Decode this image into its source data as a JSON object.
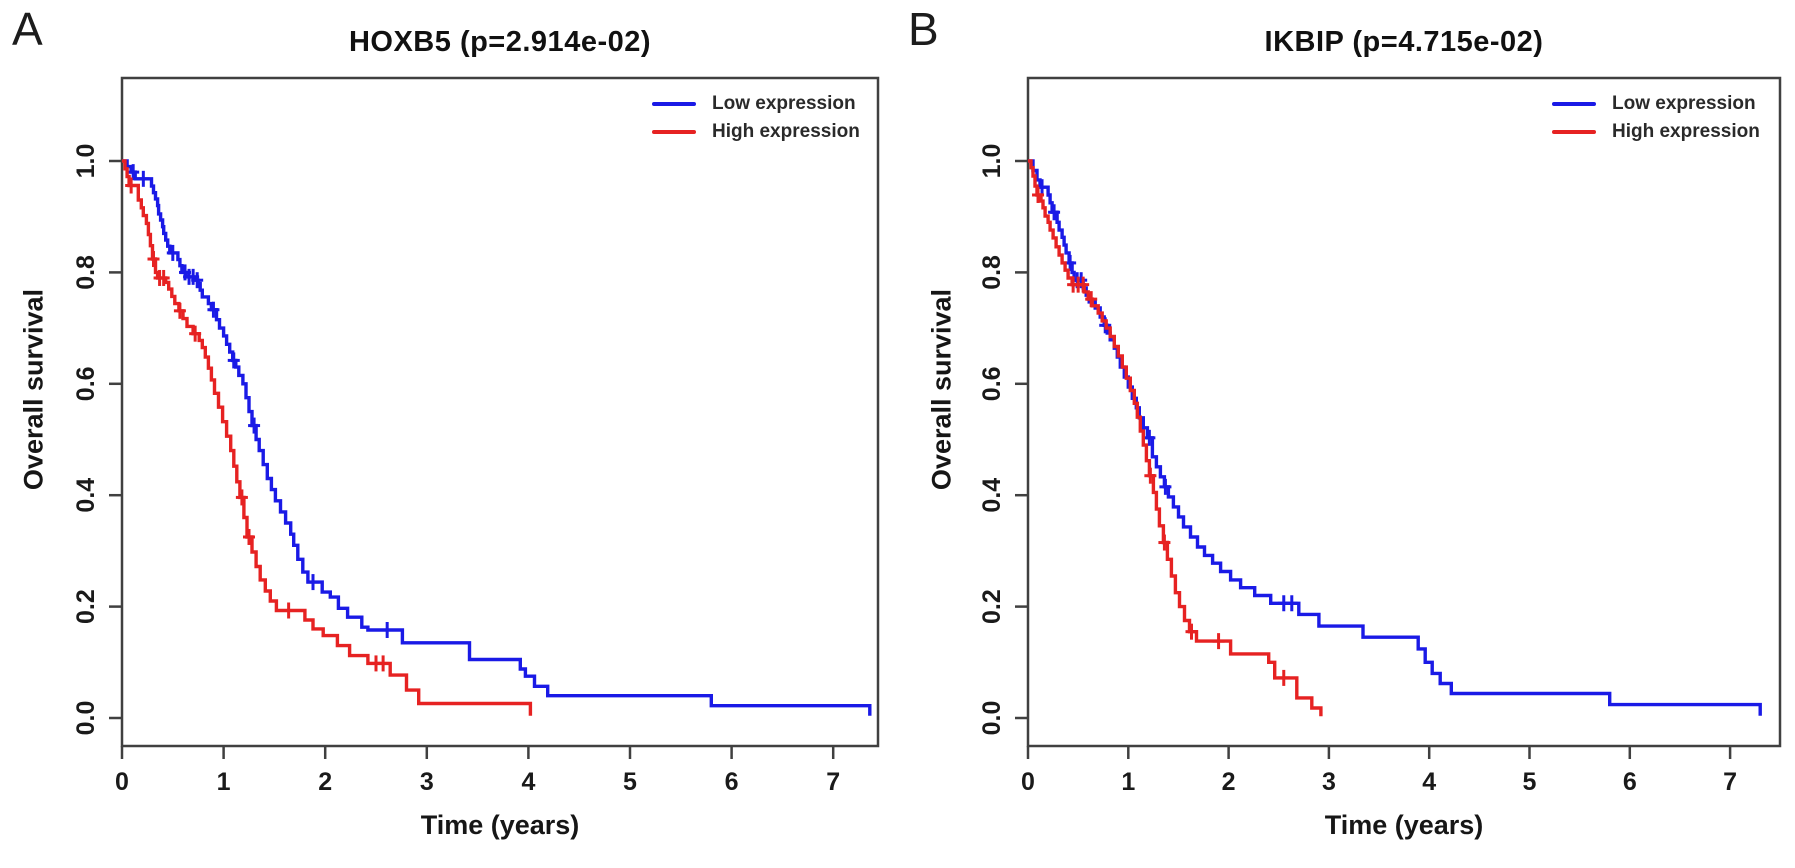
{
  "figure": {
    "background_color": "#ffffff",
    "frame_color": "#404040",
    "text_color": "#161616"
  },
  "chart_data": [
    {
      "type": "line",
      "subtype": "kaplan-meier-step",
      "panel_label": "A",
      "title": "HOXB5 (p=2.914e-02)",
      "xlabel": "Time (years)",
      "ylabel": "Overall survival",
      "xlim": [
        0,
        7.45
      ],
      "ylim": [
        0,
        1
      ],
      "x_ticks": [
        0,
        1,
        2,
        3,
        4,
        5,
        6,
        7
      ],
      "y_tick_labels": [
        "0.0",
        "0.2",
        "0.4",
        "0.6",
        "0.8",
        "1.0"
      ],
      "y_ticks": [
        0.0,
        0.2,
        0.4,
        0.6,
        0.8,
        1.0
      ],
      "grid": false,
      "legend_position": "top-right-inside",
      "series": [
        {
          "name": "Low expression",
          "color": "#1a1ae6",
          "steps": [
            [
              0.05,
              0.99
            ],
            [
              0.09,
              0.98
            ],
            [
              0.13,
              0.968
            ],
            [
              0.29,
              0.955
            ],
            [
              0.31,
              0.943
            ],
            [
              0.33,
              0.932
            ],
            [
              0.35,
              0.92
            ],
            [
              0.36,
              0.905
            ],
            [
              0.38,
              0.894
            ],
            [
              0.4,
              0.882
            ],
            [
              0.41,
              0.87
            ],
            [
              0.43,
              0.858
            ],
            [
              0.45,
              0.847
            ],
            [
              0.47,
              0.835
            ],
            [
              0.55,
              0.823
            ],
            [
              0.57,
              0.812
            ],
            [
              0.59,
              0.8
            ],
            [
              0.63,
              0.792
            ],
            [
              0.72,
              0.786
            ],
            [
              0.75,
              0.78
            ],
            [
              0.77,
              0.768
            ],
            [
              0.79,
              0.756
            ],
            [
              0.85,
              0.744
            ],
            [
              0.88,
              0.733
            ],
            [
              0.93,
              0.715
            ],
            [
              0.96,
              0.7
            ],
            [
              1.0,
              0.686
            ],
            [
              1.03,
              0.671
            ],
            [
              1.06,
              0.657
            ],
            [
              1.09,
              0.642
            ],
            [
              1.12,
              0.63
            ],
            [
              1.15,
              0.615
            ],
            [
              1.19,
              0.6
            ],
            [
              1.22,
              0.575
            ],
            [
              1.25,
              0.55
            ],
            [
              1.28,
              0.525
            ],
            [
              1.32,
              0.5
            ],
            [
              1.35,
              0.48
            ],
            [
              1.39,
              0.455
            ],
            [
              1.43,
              0.43
            ],
            [
              1.47,
              0.41
            ],
            [
              1.51,
              0.39
            ],
            [
              1.56,
              0.37
            ],
            [
              1.61,
              0.35
            ],
            [
              1.66,
              0.33
            ],
            [
              1.69,
              0.31
            ],
            [
              1.73,
              0.285
            ],
            [
              1.78,
              0.262
            ],
            [
              1.83,
              0.244
            ],
            [
              1.97,
              0.226
            ],
            [
              2.05,
              0.217
            ],
            [
              2.13,
              0.197
            ],
            [
              2.22,
              0.181
            ],
            [
              2.36,
              0.163
            ],
            [
              2.42,
              0.158
            ],
            [
              2.76,
              0.135
            ],
            [
              3.42,
              0.105
            ],
            [
              3.92,
              0.088
            ],
            [
              3.97,
              0.075
            ],
            [
              4.06,
              0.057
            ],
            [
              4.19,
              0.04
            ],
            [
              5.8,
              0.022
            ],
            [
              7.36,
              0.004
            ]
          ],
          "censor_times": [
            0.11,
            0.21,
            0.5,
            0.62,
            0.66,
            0.7,
            0.74,
            0.9,
            1.1,
            1.3,
            1.88,
            2.61
          ],
          "end_time": 7.36
        },
        {
          "name": "High expression",
          "color": "#e62222",
          "steps": [
            [
              0.03,
              0.986
            ],
            [
              0.05,
              0.972
            ],
            [
              0.07,
              0.956
            ],
            [
              0.16,
              0.93
            ],
            [
              0.19,
              0.916
            ],
            [
              0.21,
              0.902
            ],
            [
              0.24,
              0.888
            ],
            [
              0.26,
              0.868
            ],
            [
              0.28,
              0.848
            ],
            [
              0.3,
              0.824
            ],
            [
              0.33,
              0.8
            ],
            [
              0.35,
              0.79
            ],
            [
              0.43,
              0.782
            ],
            [
              0.46,
              0.77
            ],
            [
              0.49,
              0.757
            ],
            [
              0.52,
              0.744
            ],
            [
              0.56,
              0.731
            ],
            [
              0.6,
              0.717
            ],
            [
              0.64,
              0.703
            ],
            [
              0.7,
              0.69
            ],
            [
              0.76,
              0.678
            ],
            [
              0.79,
              0.665
            ],
            [
              0.82,
              0.648
            ],
            [
              0.85,
              0.628
            ],
            [
              0.88,
              0.607
            ],
            [
              0.91,
              0.583
            ],
            [
              0.95,
              0.558
            ],
            [
              0.99,
              0.532
            ],
            [
              1.03,
              0.506
            ],
            [
              1.07,
              0.48
            ],
            [
              1.1,
              0.452
            ],
            [
              1.13,
              0.424
            ],
            [
              1.16,
              0.396
            ],
            [
              1.2,
              0.36
            ],
            [
              1.23,
              0.325
            ],
            [
              1.28,
              0.298
            ],
            [
              1.32,
              0.272
            ],
            [
              1.36,
              0.248
            ],
            [
              1.41,
              0.228
            ],
            [
              1.46,
              0.21
            ],
            [
              1.52,
              0.193
            ],
            [
              1.8,
              0.176
            ],
            [
              1.88,
              0.16
            ],
            [
              1.98,
              0.148
            ],
            [
              2.12,
              0.13
            ],
            [
              2.24,
              0.112
            ],
            [
              2.42,
              0.098
            ],
            [
              2.64,
              0.077
            ],
            [
              2.8,
              0.05
            ],
            [
              2.92,
              0.026
            ],
            [
              4.02,
              0.004
            ]
          ],
          "censor_times": [
            0.09,
            0.31,
            0.37,
            0.41,
            0.57,
            0.72,
            1.18,
            1.25,
            1.64,
            2.5,
            2.57
          ],
          "end_time": 4.02
        }
      ]
    },
    {
      "type": "line",
      "subtype": "kaplan-meier-step",
      "panel_label": "B",
      "title": "IKBIP (p=4.715e-02)",
      "xlabel": "Time (years)",
      "ylabel": "Overall survival",
      "xlim": [
        0,
        7.5
      ],
      "ylim": [
        0,
        1
      ],
      "x_ticks": [
        0,
        1,
        2,
        3,
        4,
        5,
        6,
        7
      ],
      "y_tick_labels": [
        "0.0",
        "0.2",
        "0.4",
        "0.6",
        "0.8",
        "1.0"
      ],
      "y_ticks": [
        0.0,
        0.2,
        0.4,
        0.6,
        0.8,
        1.0
      ],
      "grid": false,
      "legend_position": "top-right-inside",
      "series": [
        {
          "name": "Low expression",
          "color": "#1a1ae6",
          "steps": [
            [
              0.05,
              0.983
            ],
            [
              0.09,
              0.966
            ],
            [
              0.12,
              0.953
            ],
            [
              0.2,
              0.939
            ],
            [
              0.22,
              0.925
            ],
            [
              0.24,
              0.908
            ],
            [
              0.29,
              0.89
            ],
            [
              0.31,
              0.876
            ],
            [
              0.34,
              0.863
            ],
            [
              0.36,
              0.849
            ],
            [
              0.38,
              0.835
            ],
            [
              0.41,
              0.817
            ],
            [
              0.44,
              0.8
            ],
            [
              0.46,
              0.786
            ],
            [
              0.55,
              0.772
            ],
            [
              0.58,
              0.759
            ],
            [
              0.61,
              0.747
            ],
            [
              0.67,
              0.736
            ],
            [
              0.72,
              0.72
            ],
            [
              0.76,
              0.705
            ],
            [
              0.79,
              0.691
            ],
            [
              0.82,
              0.679
            ],
            [
              0.86,
              0.664
            ],
            [
              0.89,
              0.648
            ],
            [
              0.92,
              0.63
            ],
            [
              0.96,
              0.612
            ],
            [
              1.0,
              0.594
            ],
            [
              1.04,
              0.574
            ],
            [
              1.08,
              0.557
            ],
            [
              1.11,
              0.539
            ],
            [
              1.15,
              0.521
            ],
            [
              1.19,
              0.503
            ],
            [
              1.24,
              0.469
            ],
            [
              1.28,
              0.451
            ],
            [
              1.32,
              0.433
            ],
            [
              1.36,
              0.415
            ],
            [
              1.4,
              0.397
            ],
            [
              1.45,
              0.379
            ],
            [
              1.5,
              0.361
            ],
            [
              1.55,
              0.343
            ],
            [
              1.62,
              0.325
            ],
            [
              1.69,
              0.307
            ],
            [
              1.76,
              0.292
            ],
            [
              1.84,
              0.278
            ],
            [
              1.92,
              0.263
            ],
            [
              2.02,
              0.248
            ],
            [
              2.12,
              0.234
            ],
            [
              2.26,
              0.22
            ],
            [
              2.42,
              0.206
            ],
            [
              2.7,
              0.186
            ],
            [
              2.9,
              0.165
            ],
            [
              3.34,
              0.145
            ],
            [
              3.89,
              0.124
            ],
            [
              3.96,
              0.1
            ],
            [
              4.03,
              0.08
            ],
            [
              4.11,
              0.062
            ],
            [
              4.22,
              0.044
            ],
            [
              5.8,
              0.024
            ],
            [
              7.3,
              0.004
            ]
          ],
          "censor_times": [
            0.14,
            0.26,
            0.42,
            0.49,
            0.53,
            0.77,
            1.21,
            1.37,
            2.55,
            2.63
          ],
          "end_time": 7.3
        },
        {
          "name": "High expression",
          "color": "#e62222",
          "steps": [
            [
              0.03,
              0.988
            ],
            [
              0.05,
              0.973
            ],
            [
              0.07,
              0.955
            ],
            [
              0.09,
              0.939
            ],
            [
              0.13,
              0.928
            ],
            [
              0.15,
              0.916
            ],
            [
              0.17,
              0.901
            ],
            [
              0.2,
              0.89
            ],
            [
              0.22,
              0.876
            ],
            [
              0.25,
              0.862
            ],
            [
              0.28,
              0.846
            ],
            [
              0.31,
              0.831
            ],
            [
              0.34,
              0.817
            ],
            [
              0.37,
              0.804
            ],
            [
              0.4,
              0.79
            ],
            [
              0.44,
              0.778
            ],
            [
              0.56,
              0.765
            ],
            [
              0.6,
              0.752
            ],
            [
              0.64,
              0.74
            ],
            [
              0.7,
              0.727
            ],
            [
              0.74,
              0.713
            ],
            [
              0.78,
              0.7
            ],
            [
              0.82,
              0.685
            ],
            [
              0.86,
              0.667
            ],
            [
              0.9,
              0.65
            ],
            [
              0.94,
              0.63
            ],
            [
              0.98,
              0.61
            ],
            [
              1.02,
              0.588
            ],
            [
              1.06,
              0.565
            ],
            [
              1.09,
              0.54
            ],
            [
              1.12,
              0.515
            ],
            [
              1.15,
              0.49
            ],
            [
              1.18,
              0.462
            ],
            [
              1.21,
              0.435
            ],
            [
              1.25,
              0.405
            ],
            [
              1.28,
              0.375
            ],
            [
              1.31,
              0.345
            ],
            [
              1.35,
              0.315
            ],
            [
              1.39,
              0.285
            ],
            [
              1.43,
              0.255
            ],
            [
              1.47,
              0.225
            ],
            [
              1.51,
              0.2
            ],
            [
              1.56,
              0.175
            ],
            [
              1.61,
              0.155
            ],
            [
              1.68,
              0.138
            ],
            [
              2.02,
              0.115
            ],
            [
              2.4,
              0.1
            ],
            [
              2.46,
              0.072
            ],
            [
              2.68,
              0.036
            ],
            [
              2.83,
              0.018
            ],
            [
              2.92,
              0.003
            ]
          ],
          "censor_times": [
            0.1,
            0.45,
            0.5,
            0.55,
            0.63,
            1.22,
            1.36,
            1.63,
            1.9,
            2.55
          ],
          "end_time": 2.92
        }
      ]
    }
  ]
}
